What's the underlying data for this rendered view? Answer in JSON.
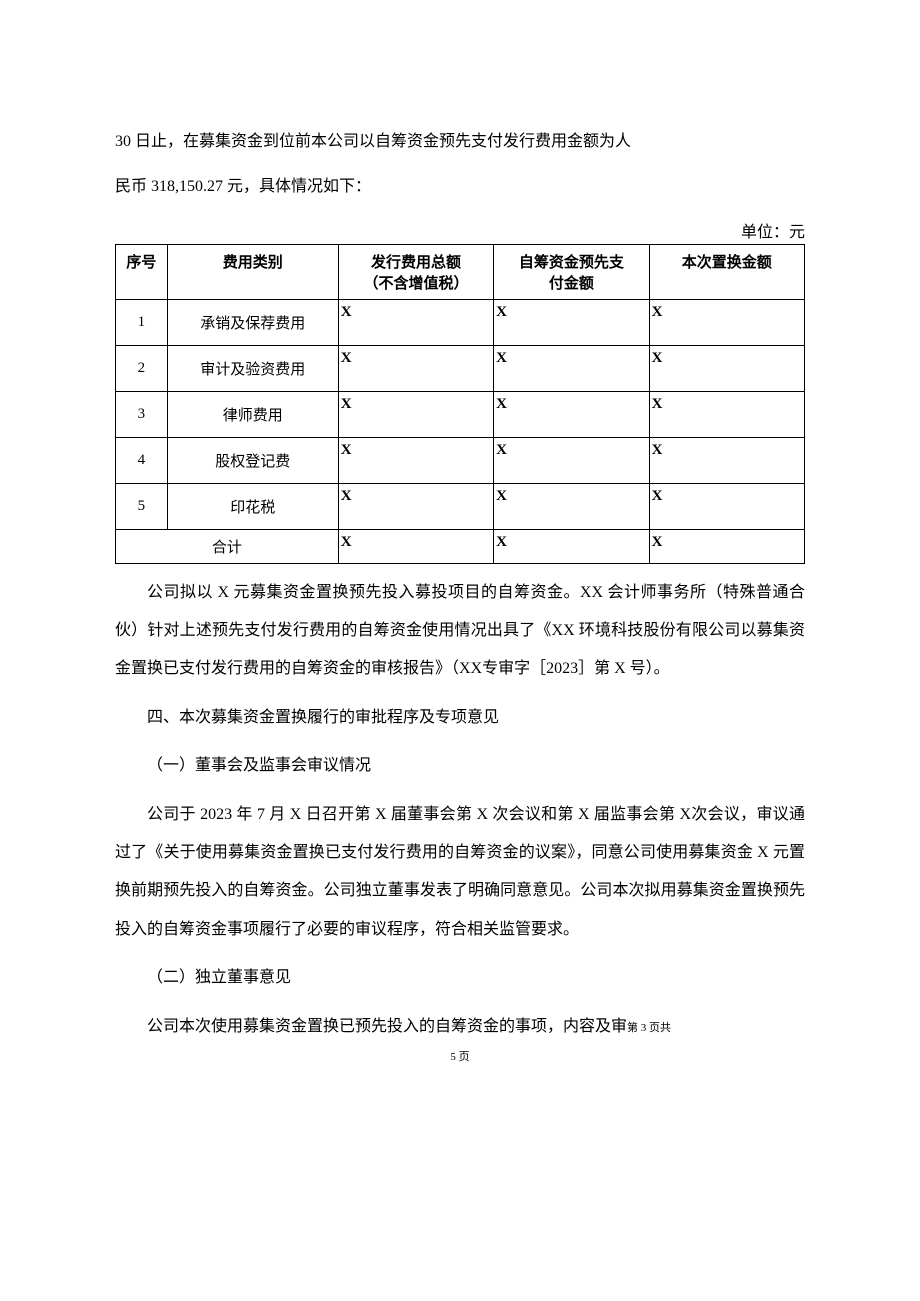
{
  "intro": {
    "line1": "30 日止，在募集资金到位前本公司以自筹资金预先支付发行费用金额为人",
    "line2": "民币 318,150.27 元，具体情况如下："
  },
  "table": {
    "unit_label": "单位：元",
    "headers": {
      "seq": "序号",
      "category": "费用类别",
      "total_fee_line1": "发行费用总额",
      "total_fee_line2": "（不含增值税）",
      "prepaid_line1": "自筹资金预先支",
      "prepaid_line2": "付金额",
      "replace": "本次置换金额"
    },
    "rows": [
      {
        "seq": "1",
        "category": "承销及保荐费用",
        "total_fee": "X",
        "prepaid": "X",
        "replace": "X"
      },
      {
        "seq": "2",
        "category": "审计及验资费用",
        "total_fee": "X",
        "prepaid": "X",
        "replace": "X"
      },
      {
        "seq": "3",
        "category": "律师费用",
        "total_fee": "X",
        "prepaid": "X",
        "replace": "X"
      },
      {
        "seq": "4",
        "category": "股权登记费",
        "total_fee": "X",
        "prepaid": "X",
        "replace": "X"
      },
      {
        "seq": "5",
        "category": "印花税",
        "total_fee": "X",
        "prepaid": "X",
        "replace": "X"
      }
    ],
    "total_row": {
      "label": "合计",
      "total_fee": "X",
      "prepaid": "X",
      "replace": "X"
    }
  },
  "paragraphs": {
    "p1": "公司拟以 X 元募集资金置换预先投入募投项目的自筹资金。XX 会计师事务所（特殊普通合伙）针对上述预先支付发行费用的自筹资金使用情况出具了《XX 环境科技股份有限公司以募集资金置换已支付发行费用的自筹资金的审核报告》（XX专审字［2023］第 X 号）。",
    "h1": "四、本次募集资金置换履行的审批程序及专项意见",
    "sh1": "（一）董事会及监事会审议情况",
    "p2": "公司于 2023 年 7 月 X 日召开第 X 届董事会第 X 次会议和第 X 届监事会第 X次会议，审议通过了《关于使用募集资金置换已支付发行费用的自筹资金的议案》，同意公司使用募集资金 X 元置换前期预先投入的自筹资金。公司独立董事发表了明确同意意见。公司本次拟用募集资金置换预先投入的自筹资金事项履行了必要的审议程序，符合相关监管要求。",
    "sh2": "（二）独立董事意见",
    "p3_main": "公司本次使用募集资金置换已预先投入的自筹资金的事项，内容及审",
    "p3_footer_inline": "第 3 页共"
  },
  "footer": {
    "text": "5 页"
  }
}
